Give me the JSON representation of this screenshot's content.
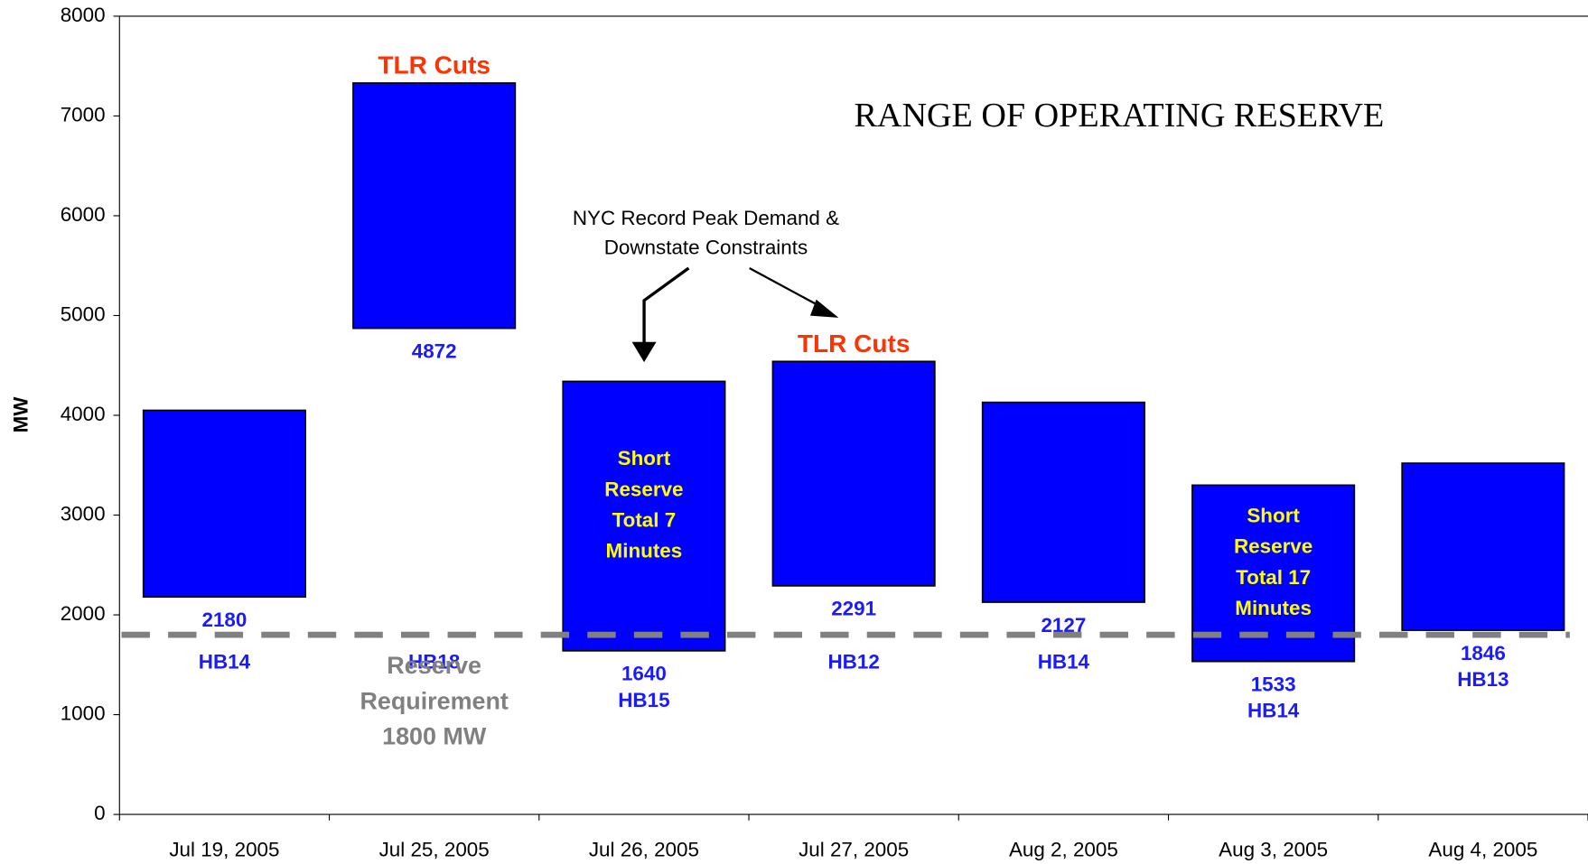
{
  "chart_data": {
    "type": "range_bar",
    "title": "RANGE OF OPERATING RESERVE",
    "y_label": "MW",
    "categories": [
      "Jul 19, 2005",
      "Jul 25, 2005",
      "Jul 26, 2005",
      "Jul 27, 2005",
      "Aug 2, 2005",
      "Aug 3, 2005",
      "Aug 4, 2005"
    ],
    "lows": [
      2180,
      4872,
      1640,
      2291,
      2127,
      1533,
      1846
    ],
    "highs": [
      4050,
      7330,
      4340,
      4540,
      4130,
      3300,
      3520
    ],
    "hour_labels": [
      "HB14",
      "HB18",
      "HB15",
      "HB12",
      "HB14",
      "HB14",
      "HB13"
    ],
    "top_notes": [
      null,
      "TLR Cuts",
      null,
      "TLR Cuts",
      null,
      null,
      null
    ],
    "inside_notes": [
      null,
      null,
      [
        "Short",
        "Reserve",
        "Total 7",
        "Minutes"
      ],
      null,
      null,
      [
        "Short",
        "Reserve",
        "Total 17",
        "Minutes"
      ],
      null
    ],
    "callout": [
      "NYC Record Peak Demand &",
      "Downstate Constraints"
    ],
    "reserve_requirement": {
      "value": 1800,
      "label": [
        "Reserve",
        "Requirement",
        "1800 MW"
      ],
      "color": "#808080"
    },
    "color": "#0000ff",
    "label_color": "#1a1aff",
    "ylim": [
      0,
      8000
    ],
    "yticks": [
      0,
      1000,
      2000,
      3000,
      4000,
      5000,
      6000,
      7000,
      8000
    ]
  }
}
